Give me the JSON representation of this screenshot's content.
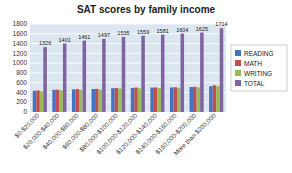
{
  "chart_data": {
    "type": "bar",
    "title": "SAT scores by family income",
    "categories": [
      "$0-$20,000",
      "$20,000-$40,000",
      "$40,000-$60,000",
      "$60,000-$80,000",
      "$80,000-$100,000",
      "$100,000-$120,000",
      "$120,000-$140,000",
      "$140,000-$160,000",
      "$160,000-$200,000",
      "More than $200,000"
    ],
    "series": [
      {
        "name": "READING",
        "color": "#4472c4",
        "values": [
          433,
          453,
          462,
          470,
          487,
          492,
          499,
          502,
          511,
          527
        ]
      },
      {
        "name": "MATH",
        "color": "#c0504d",
        "values": [
          441,
          456,
          468,
          474,
          490,
          499,
          503,
          507,
          515,
          545
        ]
      },
      {
        "name": "WRITING",
        "color": "#9bbb59",
        "values": [
          422,
          441,
          452,
          460,
          479,
          485,
          491,
          495,
          503,
          528
        ]
      },
      {
        "name": "TOTAL",
        "color": "#8064a2",
        "values": [
          1326,
          1401,
          1461,
          1497,
          1535,
          1559,
          1581,
          1604,
          1625,
          1714
        ],
        "data_labels": true
      }
    ],
    "ylim": [
      0,
      1800
    ],
    "yticks": [
      0,
      200,
      400,
      600,
      800,
      1000,
      1200,
      1400,
      1600,
      1800
    ],
    "grid": true,
    "legend": "right"
  }
}
